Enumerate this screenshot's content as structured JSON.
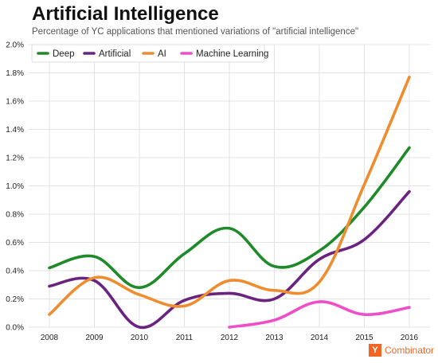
{
  "brand": {
    "logo_letter": "Y",
    "name": "Combinator"
  },
  "chart_data": {
    "type": "line",
    "title": "Artificial Intelligence",
    "subtitle": "Percentage of YC applications that mentioned variations of \"artificial intelligence\"",
    "xlabel": "",
    "ylabel": "",
    "x": [
      "2008",
      "2009",
      "2010",
      "2011",
      "2012",
      "2013",
      "2014",
      "2015",
      "2016"
    ],
    "ylim": [
      0,
      2.0
    ],
    "yticks": [
      "0.0%",
      "0.2%",
      "0.4%",
      "0.6%",
      "0.8%",
      "1.0%",
      "1.2%",
      "1.4%",
      "1.6%",
      "1.8%",
      "2.0%"
    ],
    "grid": true,
    "legend_position": "top-left",
    "series": [
      {
        "name": "Deep",
        "color": "#1e8a2a",
        "values": [
          0.42,
          0.5,
          0.28,
          0.52,
          0.7,
          0.43,
          0.54,
          0.85,
          1.27
        ]
      },
      {
        "name": "Artificial",
        "color": "#6b2380",
        "values": [
          0.29,
          0.33,
          0.0,
          0.19,
          0.24,
          0.2,
          0.48,
          0.62,
          0.96
        ]
      },
      {
        "name": "AI",
        "color": "#ef8c2e",
        "values": [
          0.09,
          0.35,
          0.23,
          0.15,
          0.33,
          0.26,
          0.32,
          1.01,
          1.77
        ]
      },
      {
        "name": "Machine Learning",
        "color": "#ee4fc8",
        "values": [
          null,
          null,
          null,
          null,
          0.0,
          0.05,
          0.18,
          0.09,
          0.14
        ]
      }
    ]
  }
}
